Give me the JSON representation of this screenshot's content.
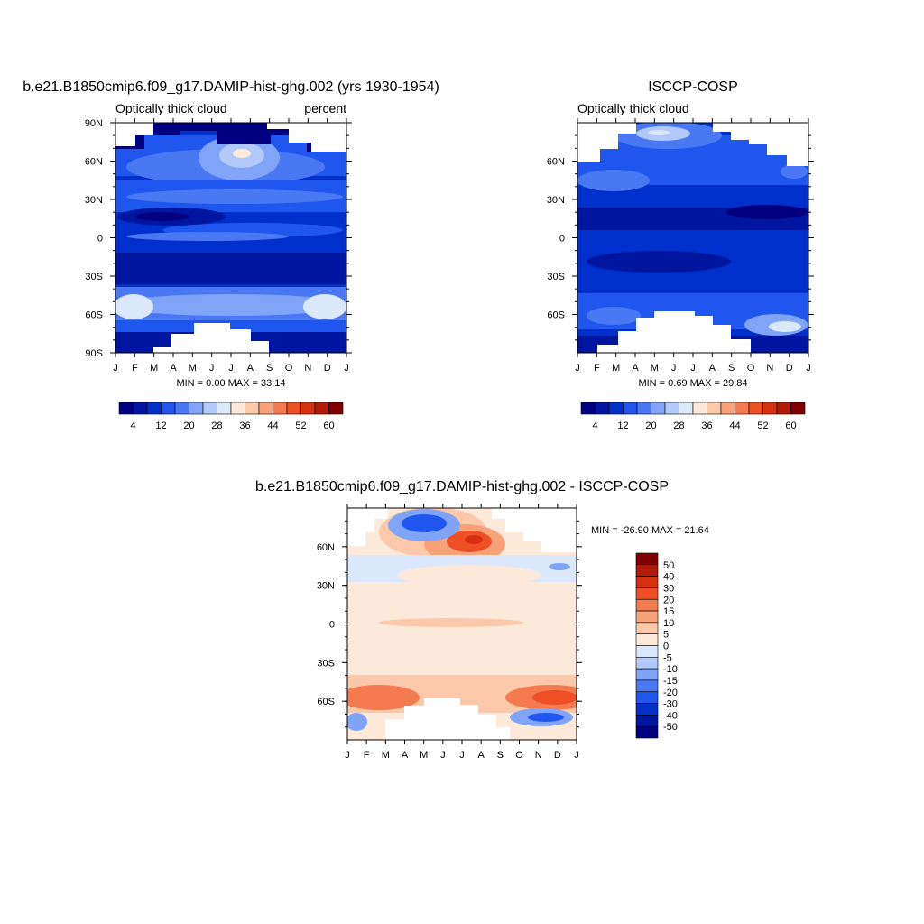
{
  "chart_data": [
    {
      "type": "heatmap",
      "title": "b.e21.B1850cmip6.f09_g17.DAMIP-hist-ghg.002 (yrs 1930-1954)",
      "left_subtitle": "Optically thick cloud",
      "right_subtitle": "percent",
      "x_ticks": [
        "J",
        "F",
        "M",
        "A",
        "M",
        "J",
        "J",
        "A",
        "S",
        "O",
        "N",
        "D",
        "J"
      ],
      "y_ticks": [
        "90N",
        "60N",
        "30N",
        "0",
        "30S",
        "60S",
        "90S"
      ],
      "stats": "MIN =   0.00 MAX =  33.14",
      "colorbar_labels": [
        "4",
        "12",
        "20",
        "28",
        "36",
        "44",
        "52",
        "60"
      ],
      "colorbar_colors": [
        "#000080",
        "#0016a0",
        "#0030cc",
        "#1f57ee",
        "#4a78f5",
        "#80a5f8",
        "#b0c8fa",
        "#dbe8fb",
        "#fde9da",
        "#fbc9a9",
        "#f8a27a",
        "#f47a4f",
        "#ee4f25",
        "#d63010",
        "#b21a0a",
        "#800000"
      ]
    },
    {
      "type": "heatmap",
      "title": "ISCCP-COSP",
      "left_subtitle": "Optically thick cloud",
      "x_ticks": [
        "J",
        "F",
        "M",
        "A",
        "M",
        "J",
        "J",
        "A",
        "S",
        "O",
        "N",
        "D",
        "J"
      ],
      "y_ticks": [
        "60N",
        "30N",
        "0",
        "30S",
        "60S"
      ],
      "stats": "MIN =   0.69 MAX =  29.84",
      "colorbar_labels": [
        "4",
        "12",
        "20",
        "28",
        "36",
        "44",
        "52",
        "60"
      ],
      "colorbar_colors": [
        "#000080",
        "#0016a0",
        "#0030cc",
        "#1f57ee",
        "#4a78f5",
        "#80a5f8",
        "#b0c8fa",
        "#dbe8fb",
        "#fde9da",
        "#fbc9a9",
        "#f8a27a",
        "#f47a4f",
        "#ee4f25",
        "#d63010",
        "#b21a0a",
        "#800000"
      ]
    },
    {
      "type": "heatmap",
      "title": "b.e21.B1850cmip6.f09_g17.DAMIP-hist-ghg.002 - ISCCP-COSP",
      "x_ticks": [
        "J",
        "F",
        "M",
        "A",
        "M",
        "J",
        "J",
        "A",
        "S",
        "O",
        "N",
        "D",
        "J"
      ],
      "y_ticks": [
        "60N",
        "30N",
        "0",
        "30S",
        "60S"
      ],
      "stats": "MIN = -26.90 MAX =  21.64",
      "colorbar_labels": [
        "50",
        "40",
        "30",
        "20",
        "15",
        "10",
        "5",
        "0",
        "-5",
        "-10",
        "-15",
        "-20",
        "-30",
        "-40",
        "-50"
      ],
      "colorbar_colors": [
        "#800000",
        "#b21a0a",
        "#d63010",
        "#ee4f25",
        "#f47a4f",
        "#f8a27a",
        "#fbc9a9",
        "#fde9da",
        "#dbe8fb",
        "#b0c8fa",
        "#80a5f8",
        "#4a78f5",
        "#1f57ee",
        "#0030cc",
        "#0016a0",
        "#000080"
      ]
    }
  ]
}
